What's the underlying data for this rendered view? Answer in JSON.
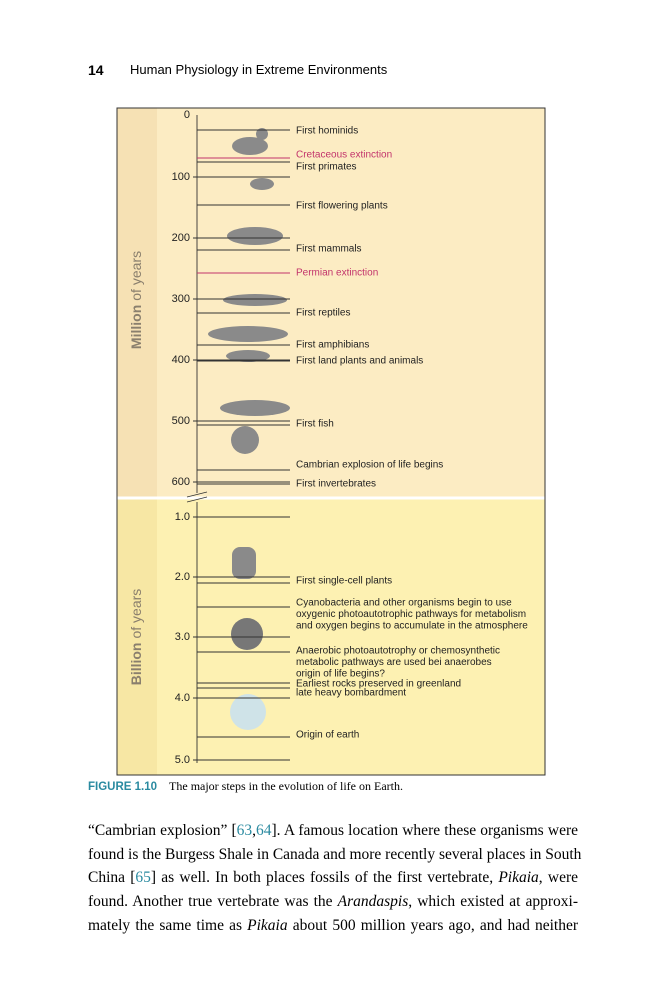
{
  "header": {
    "page_number": "14",
    "running_title": "Human Physiology in Extreme Environments"
  },
  "figure": {
    "axis_titles": [
      {
        "bold": "Million",
        "rest": "of years"
      },
      {
        "bold": "Billion",
        "rest": "of years"
      }
    ],
    "million_ticks": [
      "0",
      "100",
      "200",
      "300",
      "400",
      "500",
      "600"
    ],
    "billion_ticks": [
      "1.0",
      "2.0",
      "3.0",
      "4.0",
      "5.0"
    ],
    "events": [
      {
        "lines": [
          "First hominids"
        ]
      },
      {
        "lines": [
          "Cretaceous extinction"
        ],
        "color": "#c2336b"
      },
      {
        "lines": [
          "First primates"
        ]
      },
      {
        "lines": [
          "First flowering plants"
        ]
      },
      {
        "lines": [
          "First mammals"
        ]
      },
      {
        "lines": [
          "Permian extinction"
        ],
        "color": "#c2336b"
      },
      {
        "lines": [
          "First reptiles"
        ]
      },
      {
        "lines": [
          "First amphibians"
        ]
      },
      {
        "lines": [
          "First land plants and animals"
        ]
      },
      {
        "lines": [
          "First fish"
        ]
      },
      {
        "lines": [
          "Cambrian explosion of life begins"
        ]
      },
      {
        "lines": [
          "First invertebrates"
        ]
      },
      {
        "lines": [
          "First single-cell plants"
        ]
      },
      {
        "lines": [
          "Cyanobacteria and other organisms begin to use",
          "oxygenic photoautotrophic pathways for metabolism",
          "and oxygen begins to accumulate in the atmosphere"
        ]
      },
      {
        "lines": [
          "Anaerobic photoautotrophy or chemosynthetic",
          "metabolic pathways are used bei anaerobes",
          "origin of life begins?"
        ]
      },
      {
        "lines": [
          "Earliest rocks preserved in greenland"
        ]
      },
      {
        "lines": [
          "late heavy bombardment"
        ]
      },
      {
        "lines": [
          "Origin of earth"
        ]
      }
    ],
    "caption": {
      "label": "FIGURE 1.10",
      "text": "The major steps in the evolution of life on Earth."
    }
  },
  "body": {
    "lines": [
      [
        {
          "text": "“Cambrian explosion” ["
        },
        {
          "text": "63",
          "link": true
        },
        {
          "text": ","
        },
        {
          "text": "64",
          "link": true
        },
        {
          "text": "]. A famous location where these organisms were"
        }
      ],
      [
        {
          "text": "found is the Burgess Shale in Canada and more recently several places in South"
        }
      ],
      [
        {
          "text": "China ["
        },
        {
          "text": "65",
          "link": true
        },
        {
          "text": "] as well. In both places fossils of the first vertebrate, "
        },
        {
          "text": "Pikaia",
          "em": true
        },
        {
          "text": ", were"
        }
      ],
      [
        {
          "text": "found. Another true vertebrate was the "
        },
        {
          "text": "Arandaspis",
          "em": true
        },
        {
          "text": ", which existed at approxi-"
        }
      ],
      [
        {
          "text": "mately the same time as "
        },
        {
          "text": "Pikaia",
          "em": true
        },
        {
          "text": " about 500 million years ago, and had neither"
        }
      ]
    ]
  }
}
